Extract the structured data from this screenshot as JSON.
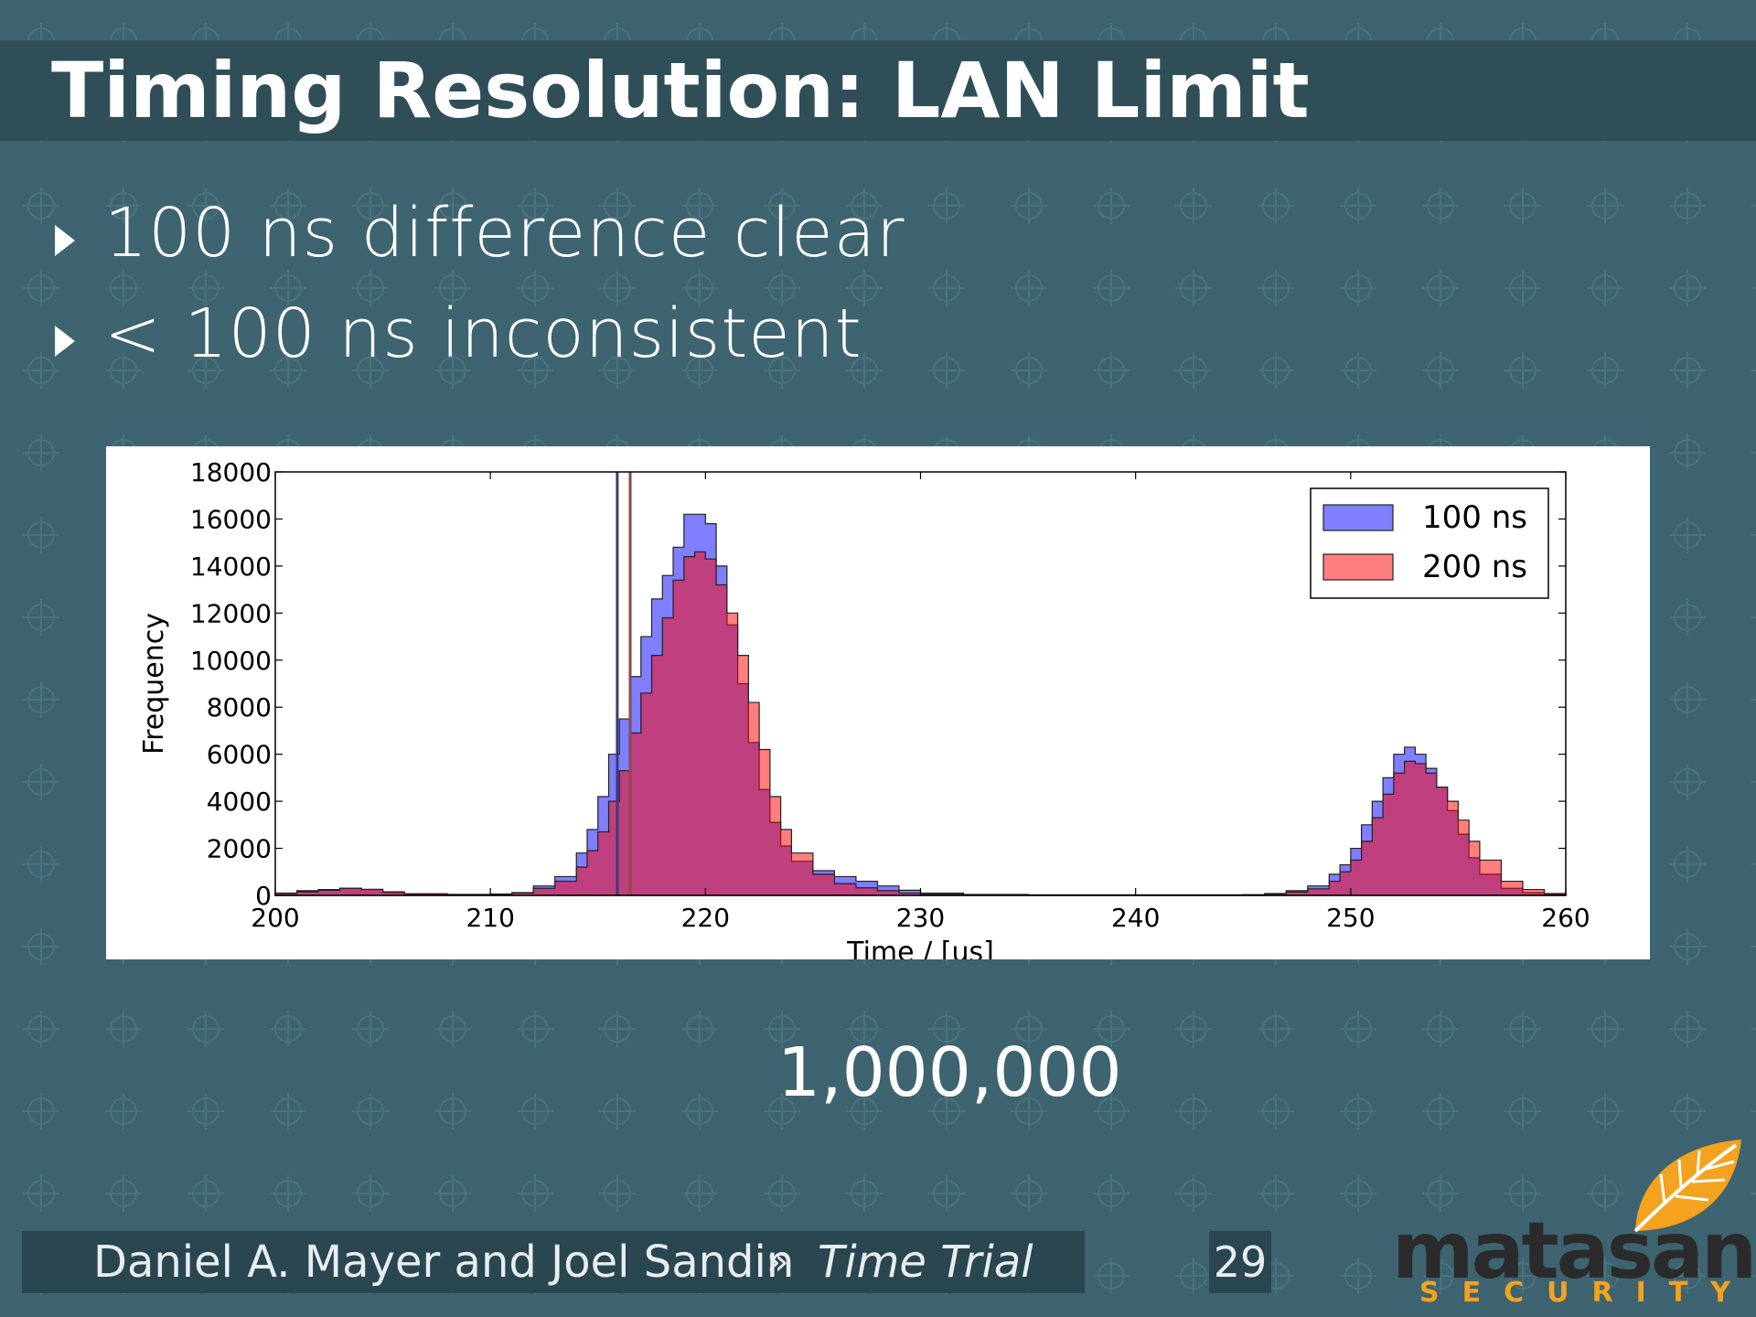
{
  "slide": {
    "title": "Timing Resolution: LAN Limit",
    "bullets": [
      "100 ns difference clear",
      "< 100 ns inconsistent"
    ],
    "sample_count": "1,000,000"
  },
  "footer": {
    "authors": "Daniel A. Mayer and Joel Sandin",
    "separator": "»",
    "talk_title": "Time Trial",
    "page_number": "29"
  },
  "logo": {
    "name": "matasano",
    "tagline": "SECURITY",
    "leaf_color": "#f5a21f"
  },
  "colors": {
    "background": "#3d6470",
    "title_bar": "#2f4e58",
    "footer_bar": "#2a4650"
  },
  "chart_data": {
    "type": "area",
    "xlabel": "Time / [us]",
    "ylabel": "Frequency",
    "xlim": [
      200,
      260
    ],
    "ylim": [
      0,
      18000
    ],
    "xticks": [
      200,
      210,
      220,
      230,
      240,
      250,
      260
    ],
    "yticks": [
      0,
      2000,
      4000,
      6000,
      8000,
      10000,
      12000,
      14000,
      16000,
      18000
    ],
    "legend_position": "top-right",
    "vlines": [
      {
        "x": 215.9,
        "color": "#3b3b78"
      },
      {
        "x": 216.5,
        "color": "#8a4a4a"
      }
    ],
    "x": [
      200,
      201,
      202,
      203,
      204,
      205,
      206,
      208,
      210,
      211,
      212,
      213,
      214,
      214.5,
      215,
      215.5,
      216,
      216.5,
      217,
      217.5,
      218,
      218.5,
      219,
      219.5,
      220,
      220.5,
      221,
      221.5,
      222,
      222.5,
      223,
      223.5,
      224,
      225,
      226,
      227,
      228,
      229,
      230,
      232,
      235,
      240,
      245,
      246,
      247,
      248,
      249,
      249.5,
      250,
      250.5,
      251,
      251.5,
      252,
      252.5,
      253,
      253.5,
      254,
      254.5,
      255,
      255.5,
      256,
      257,
      258,
      259,
      260
    ],
    "series": [
      {
        "name": "100 ns",
        "color": "#0000ff",
        "opacity": 0.5,
        "values": [
          100,
          200,
          250,
          300,
          250,
          120,
          60,
          40,
          60,
          120,
          400,
          800,
          1800,
          2800,
          4200,
          6000,
          7500,
          9300,
          11000,
          12600,
          13600,
          14800,
          16200,
          16200,
          15800,
          14000,
          11500,
          9000,
          6500,
          4500,
          3100,
          2100,
          1450,
          1050,
          800,
          600,
          400,
          220,
          100,
          40,
          20,
          20,
          30,
          80,
          200,
          400,
          900,
          1300,
          2000,
          3000,
          4000,
          5000,
          6000,
          6300,
          6000,
          5400,
          4600,
          3600,
          2600,
          1600,
          900,
          300,
          120,
          40,
          20
        ]
      },
      {
        "name": "200 ns",
        "color": "#ff0000",
        "opacity": 0.5,
        "values": [
          80,
          150,
          220,
          300,
          260,
          150,
          70,
          40,
          50,
          100,
          300,
          600,
          1200,
          1900,
          2700,
          4000,
          5300,
          6900,
          8600,
          10200,
          11800,
          13400,
          14400,
          14600,
          14300,
          13200,
          12000,
          10200,
          8200,
          6200,
          4200,
          2800,
          1800,
          900,
          500,
          320,
          200,
          100,
          50,
          30,
          20,
          20,
          25,
          60,
          140,
          280,
          600,
          1000,
          1500,
          2300,
          3300,
          4300,
          5200,
          5700,
          5600,
          5200,
          4600,
          4000,
          3200,
          2300,
          1500,
          600,
          250,
          80,
          30
        ]
      }
    ]
  }
}
